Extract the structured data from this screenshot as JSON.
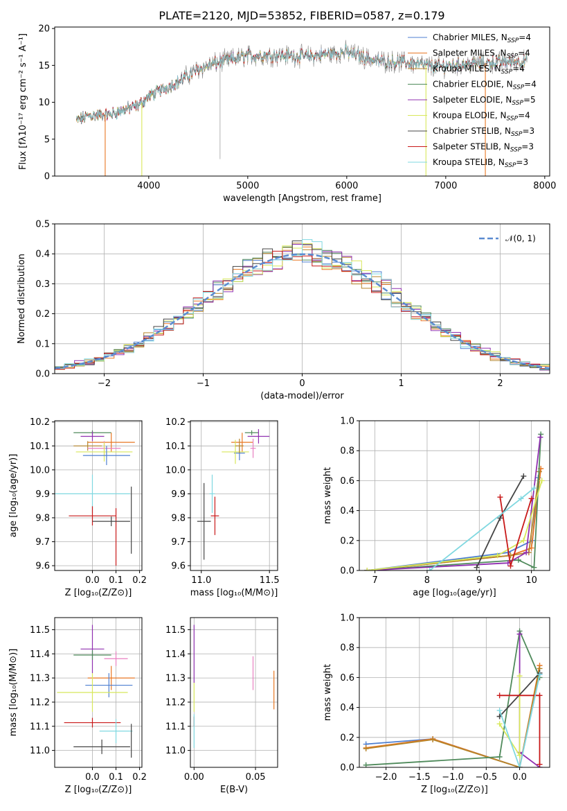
{
  "figure_title": "PLATE=2120, MJD=53852, FIBERID=0587, z=0.179",
  "colors": {
    "Chabrier MILES": "#4e7fd0",
    "Salpeter MILES": "#e87722",
    "Kroupa MILES": "#b5842a",
    "Chabrier ELODIE": "#4f8a5b",
    "Salpeter ELODIE": "#9030b0",
    "Kroupa ELODIE": "#d8e85a",
    "Chabrier STELIB": "#444444",
    "Salpeter STELIB": "#c81818",
    "Kroupa STELIB": "#7fd8e0",
    "normal": "#5b8bd0",
    "miles_pink": "#e87fc0"
  },
  "chart_data": [
    {
      "id": "spectrum",
      "type": "line",
      "title": "PLATE=2120, MJD=53852, FIBERID=0587, z=0.179",
      "xlabel": "wavelength [Angstrom, rest frame]",
      "ylabel": "Flux [fλ10⁻¹⁷ erg cm⁻² s⁻¹ A⁻¹]",
      "xlim": [
        3050,
        8050
      ],
      "ylim": [
        0,
        20.2
      ],
      "xticks": [
        4000,
        5000,
        6000,
        7000,
        8000
      ],
      "yticks": [
        0,
        5,
        10,
        15,
        20
      ],
      "grid": false,
      "legend_position": "top-right",
      "legend": [
        "Chabrier MILES, N_SSP=4",
        "Salpeter MILES, N_SSP=4",
        "Kroupa MILES, N_SSP=4",
        "Chabrier ELODIE, N_SSP=4",
        "Salpeter ELODIE, N_SSP=5",
        "Kroupa ELODIE, N_SSP=4",
        "Chabrier STELIB, N_SSP=3",
        "Salpeter STELIB, N_SSP=3",
        "Kroupa STELIB, N_SSP=3"
      ],
      "continuum": [
        [
          3270,
          7.5
        ],
        [
          3400,
          8.2
        ],
        [
          3600,
          8.3
        ],
        [
          3750,
          9.0
        ],
        [
          3900,
          9.6
        ],
        [
          4000,
          10.8
        ],
        [
          4100,
          11.5
        ],
        [
          4300,
          12.8
        ],
        [
          4500,
          14.5
        ],
        [
          4700,
          15.4
        ],
        [
          5000,
          16.3
        ],
        [
          5300,
          16.4
        ],
        [
          5600,
          16.2
        ],
        [
          6000,
          16.8
        ],
        [
          6300,
          15.6
        ],
        [
          6600,
          15.4
        ],
        [
          6900,
          14.8
        ],
        [
          7200,
          15.2
        ],
        [
          7500,
          15.4
        ],
        [
          7800,
          15.6
        ]
      ]
    },
    {
      "id": "residuals",
      "type": "histogram",
      "xlabel": "(data-model)/error",
      "ylabel": "Normed distribution",
      "xlim": [
        -2.5,
        2.5
      ],
      "ylim": [
        0,
        0.5
      ],
      "xticks": [
        -2,
        -1,
        0,
        1,
        2
      ],
      "yticks": [
        0.0,
        0.1,
        0.2,
        0.3,
        0.4,
        0.5
      ],
      "grid": true,
      "legend_position": "top-right",
      "legend": [
        "𝒩(0, 1)"
      ],
      "bin_width": 0.1
    },
    {
      "id": "z-age",
      "type": "scatter",
      "xlabel": "Z [log₁₀(Z/Z⊙)]",
      "ylabel": "age  [log₁₀(age/yr)]",
      "xlim": [
        -0.16,
        0.21
      ],
      "ylim": [
        9.58,
        10.205
      ],
      "xticks": [
        0.0,
        0.1,
        0.2
      ],
      "yticks": [
        9.6,
        9.7,
        9.8,
        9.9,
        10.0,
        10.1,
        10.2
      ],
      "points": [
        {
          "c": "Chabrier ELODIE",
          "x": 0.0,
          "xe": 0.08,
          "y": 10.155,
          "ye": 0.01
        },
        {
          "c": "Salpeter ELODIE",
          "x": 0.0,
          "xe": 0.05,
          "y": 10.14,
          "ye": 0.02
        },
        {
          "c": "Salpeter MILES",
          "x": 0.08,
          "xe": 0.1,
          "y": 10.115,
          "ye": 0.04
        },
        {
          "c": "Kroupa MILES",
          "x": -0.02,
          "xe": 0.06,
          "y": 10.1,
          "ye": 0.02
        },
        {
          "c": "miles_pink",
          "x": 0.05,
          "xe": 0.07,
          "y": 10.09,
          "ye": 0.03
        },
        {
          "c": "Kroupa ELODIE",
          "x": 0.05,
          "xe": 0.12,
          "y": 10.075,
          "ye": 0.04
        },
        {
          "c": "Chabrier MILES",
          "x": 0.06,
          "xe": 0.1,
          "y": 10.06,
          "ye": 0.04
        },
        {
          "c": "Kroupa STELIB",
          "x": 0.0,
          "xe": 0.16,
          "y": 9.9,
          "ye": 0.08
        },
        {
          "c": "Salpeter STELIB",
          "x": 0.0,
          "xe": 0.1,
          "y": 9.808,
          "ye": 0.04
        },
        {
          "c": "Salpeter STELIB",
          "x": 0.1,
          "xe": 0.0,
          "y": 9.72,
          "ye": 0.12
        },
        {
          "c": "Chabrier STELIB",
          "x": 0.08,
          "xe": 0.08,
          "y": 9.785,
          "ye": 0.02
        },
        {
          "c": "Chabrier STELIB",
          "x": 0.165,
          "xe": 0.0,
          "y": 9.79,
          "ye": 0.14
        }
      ]
    },
    {
      "id": "mass-age",
      "type": "scatter",
      "xlabel": "mass [log₁₀(M/M⊙)]",
      "ylabel": "",
      "xlim": [
        10.92,
        11.56
      ],
      "ylim": [
        9.58,
        10.205
      ],
      "xticks": [
        11.0,
        11.5
      ],
      "yticks": [
        9.6,
        9.7,
        9.8,
        9.9,
        10.0,
        10.1,
        10.2
      ],
      "points": [
        {
          "c": "Chabrier ELODIE",
          "x": 11.37,
          "xe": 0.05,
          "y": 10.155,
          "ye": 0.01
        },
        {
          "c": "Salpeter ELODIE",
          "x": 11.42,
          "xe": 0.08,
          "y": 10.14,
          "ye": 0.03
        },
        {
          "c": "Salpeter MILES",
          "x": 11.3,
          "xe": 0.08,
          "y": 10.115,
          "ye": 0.04
        },
        {
          "c": "miles_pink",
          "x": 11.38,
          "xe": 0.02,
          "y": 10.09,
          "ye": 0.04
        },
        {
          "c": "Chabrier MILES",
          "x": 11.28,
          "xe": 0.04,
          "y": 10.07,
          "ye": 0.03
        },
        {
          "c": "Kroupa ELODIE",
          "x": 11.25,
          "xe": 0.1,
          "y": 10.075,
          "ye": 0.05
        },
        {
          "c": "Kroupa MILES",
          "x": 11.28,
          "xe": 0.03,
          "y": 10.1,
          "ye": 0.03
        },
        {
          "c": "Kroupa STELIB",
          "x": 11.08,
          "xe": 0.02,
          "y": 9.9,
          "ye": 0.08
        },
        {
          "c": "Salpeter STELIB",
          "x": 11.1,
          "xe": 0.03,
          "y": 9.808,
          "ye": 0.08
        },
        {
          "c": "Chabrier STELIB",
          "x": 11.02,
          "xe": 0.05,
          "y": 9.785,
          "ye": 0.16
        }
      ]
    },
    {
      "id": "age-weight",
      "type": "line",
      "xlabel": "age  [log₁₀(age/yr)]",
      "ylabel": "mass weight",
      "xlim": [
        6.7,
        10.35
      ],
      "ylim": [
        0,
        1
      ],
      "xticks": [
        7,
        8,
        9,
        10
      ],
      "yticks": [
        0.0,
        0.2,
        0.4,
        0.6,
        0.8,
        1.0
      ],
      "grid": true,
      "series": [
        {
          "c": "Chabrier MILES",
          "x": [
            6.85,
            9.55,
            10.02,
            10.13
          ],
          "y": [
            0.0,
            0.12,
            0.2,
            0.62
          ]
        },
        {
          "c": "Salpeter MILES",
          "x": [
            6.85,
            9.6,
            10.0,
            10.18
          ],
          "y": [
            0.0,
            0.1,
            0.15,
            0.68
          ]
        },
        {
          "c": "Kroupa MILES",
          "x": [
            6.85,
            9.6,
            9.95,
            10.15
          ],
          "y": [
            0.0,
            0.1,
            0.12,
            0.66
          ]
        },
        {
          "c": "Chabrier ELODIE",
          "x": [
            6.85,
            9.75,
            10.05,
            10.18
          ],
          "y": [
            0.0,
            0.07,
            0.02,
            0.91
          ]
        },
        {
          "c": "Salpeter ELODIE",
          "x": [
            6.85,
            9.55,
            9.9,
            10.17
          ],
          "y": [
            0.0,
            0.05,
            0.12,
            0.89
          ]
        },
        {
          "c": "Kroupa ELODIE",
          "x": [
            6.85,
            9.35,
            9.85,
            10.2
          ],
          "y": [
            0.0,
            0.1,
            0.2,
            0.6
          ]
        },
        {
          "c": "Chabrier STELIB",
          "x": [
            8.95,
            9.4,
            9.85
          ],
          "y": [
            0.02,
            0.35,
            0.63
          ]
        },
        {
          "c": "Salpeter STELIB",
          "x": [
            9.4,
            9.6,
            10.0
          ],
          "y": [
            0.49,
            0.03,
            0.48
          ]
        },
        {
          "c": "Kroupa STELIB",
          "x": [
            8.05,
            9.8,
            10.05
          ],
          "y": [
            0.0,
            0.48,
            0.55
          ]
        }
      ]
    },
    {
      "id": "z-mass",
      "type": "scatter",
      "xlabel": "Z [log₁₀(Z/Z⊙)]",
      "ylabel": "mass [log₁₀(M/M⊙)]",
      "xlim": [
        -0.16,
        0.21
      ],
      "ylim": [
        10.93,
        11.55
      ],
      "xticks": [
        0.0,
        0.1,
        0.2
      ],
      "yticks": [
        11.0,
        11.1,
        11.2,
        11.3,
        11.4,
        11.5
      ],
      "points": [
        {
          "c": "Salpeter ELODIE",
          "x": 0.0,
          "xe": 0.05,
          "y": 11.42,
          "ye": 0.1
        },
        {
          "c": "Chabrier ELODIE",
          "x": 0.0,
          "xe": 0.08,
          "y": 11.395,
          "ye": 0.02
        },
        {
          "c": "miles_pink",
          "x": 0.1,
          "xe": 0.05,
          "y": 11.38,
          "ye": 0.03
        },
        {
          "c": "Salpeter MILES",
          "x": 0.08,
          "xe": 0.1,
          "y": 11.3,
          "ye": 0.05
        },
        {
          "c": "Chabrier MILES",
          "x": 0.07,
          "xe": 0.1,
          "y": 11.27,
          "ye": 0.05
        },
        {
          "c": "Kroupa ELODIE",
          "x": 0.0,
          "xe": 0.15,
          "y": 11.24,
          "ye": 0.08
        },
        {
          "c": "Salpeter STELIB",
          "x": 0.0,
          "xe": 0.12,
          "y": 11.115,
          "ye": 0.02
        },
        {
          "c": "Kroupa STELIB",
          "x": 0.1,
          "xe": 0.07,
          "y": 11.08,
          "ye": 0.05
        },
        {
          "c": "Chabrier STELIB",
          "x": 0.04,
          "xe": 0.12,
          "y": 11.015,
          "ye": 0.03
        },
        {
          "c": "Chabrier STELIB",
          "x": 0.165,
          "xe": 0.0,
          "y": 11.04,
          "ye": 0.07
        }
      ]
    },
    {
      "id": "ebv-mass",
      "type": "scatter",
      "xlabel": "E(B-V)",
      "ylabel": "",
      "xlim": [
        -0.003,
        0.068
      ],
      "ylim": [
        10.93,
        11.55
      ],
      "xticks": [
        0.0,
        0.05
      ],
      "yticks": [
        11.0,
        11.1,
        11.2,
        11.3,
        11.4,
        11.5
      ],
      "points": [
        {
          "c": "Salpeter ELODIE",
          "x": 0.0,
          "xe": 0.0,
          "y": 11.4,
          "ye": 0.12
        },
        {
          "c": "Kroupa ELODIE",
          "x": 0.0,
          "xe": 0.0,
          "y": 11.22,
          "ye": 0.06
        },
        {
          "c": "Salpeter STELIB",
          "x": 0.0,
          "xe": 0.0,
          "y": 11.12,
          "ye": 0.02
        },
        {
          "c": "Kroupa STELIB",
          "x": 0.0,
          "xe": 0.0,
          "y": 11.08,
          "ye": 0.07
        },
        {
          "c": "miles_pink",
          "x": 0.048,
          "xe": 0.0,
          "y": 11.32,
          "ye": 0.07
        },
        {
          "c": "Salpeter MILES",
          "x": 0.065,
          "xe": 0.0,
          "y": 11.25,
          "ye": 0.08
        }
      ]
    },
    {
      "id": "z-weight",
      "type": "line",
      "xlabel": "Z [log₁₀(Z/Z⊙)]",
      "ylabel": "mass weight",
      "xlim": [
        -2.4,
        0.45
      ],
      "ylim": [
        0,
        1
      ],
      "xticks": [
        -2.0,
        -1.5,
        -1.0,
        -0.5,
        0.0
      ],
      "yticks": [
        0.0,
        0.2,
        0.4,
        0.6,
        0.8,
        1.0
      ],
      "grid": true,
      "series": [
        {
          "c": "Chabrier MILES",
          "x": [
            -2.3,
            -1.3,
            0.0,
            0.3
          ],
          "y": [
            0.155,
            0.19,
            0.0,
            0.62
          ]
        },
        {
          "c": "Salpeter MILES",
          "x": [
            -2.3,
            -1.3,
            0.0,
            0.3
          ],
          "y": [
            0.13,
            0.19,
            0.0,
            0.68
          ]
        },
        {
          "c": "Kroupa MILES",
          "x": [
            -2.3,
            -1.3,
            0.0,
            0.3
          ],
          "y": [
            0.125,
            0.185,
            0.0,
            0.66
          ]
        },
        {
          "c": "Chabrier ELODIE",
          "x": [
            -2.3,
            -0.3,
            0.0,
            0.3
          ],
          "y": [
            0.015,
            0.07,
            0.91,
            0.6
          ]
        },
        {
          "c": "Salpeter ELODIE",
          "x": [
            0.0,
            0.0,
            0.3
          ],
          "y": [
            0.89,
            0.1,
            0.0
          ]
        },
        {
          "c": "Kroupa ELODIE",
          "x": [
            -0.3,
            0.0,
            0.0
          ],
          "y": [
            0.29,
            0.08,
            0.61
          ]
        },
        {
          "c": "Chabrier STELIB",
          "x": [
            -0.3,
            0.3,
            -0.3
          ],
          "y": [
            0.34,
            0.63,
            0.34
          ]
        },
        {
          "c": "Salpeter STELIB",
          "x": [
            -0.3,
            0.3,
            0.3
          ],
          "y": [
            0.48,
            0.48,
            0.02
          ]
        },
        {
          "c": "Kroupa STELIB",
          "x": [
            -0.3,
            0.0,
            0.3
          ],
          "y": [
            0.38,
            0.0,
            0.62
          ]
        }
      ]
    }
  ]
}
